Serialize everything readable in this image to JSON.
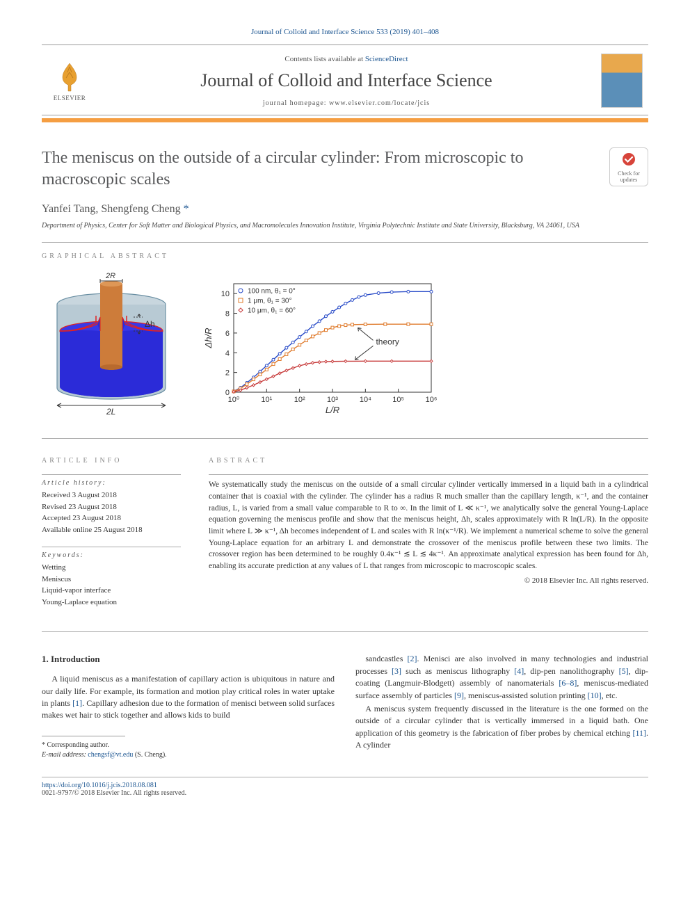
{
  "citation": "Journal of Colloid and Interface Science 533 (2019) 401–408",
  "banner": {
    "contents_prefix": "Contents lists available at ",
    "contents_link": "ScienceDirect",
    "journal_name": "Journal of Colloid and Interface Science",
    "homepage_prefix": "journal homepage: ",
    "homepage_url": "www.elsevier.com/locate/jcis",
    "publisher": "ELSEVIER"
  },
  "updates_badge": {
    "line1": "Check for",
    "line2": "updates",
    "circle_color": "#d7443a",
    "check_color": "#ffffff"
  },
  "title": "The meniscus on the outside of a circular cylinder: From microscopic to macroscopic scales",
  "authors": "Yanfei Tang, Shengfeng Cheng",
  "corr_symbol": "*",
  "affiliation": "Department of Physics, Center for Soft Matter and Biological Physics, and Macromolecules Innovation Institute, Virginia Polytechnic Institute and State University, Blacksburg, VA 24061, USA",
  "section_labels": {
    "graphical": "GRAPHICAL ABSTRACT",
    "info": "ARTICLE INFO",
    "abstract": "ABSTRACT"
  },
  "graphical_abstract": {
    "cylinder": {
      "container_color": "#9fb9c7",
      "container_border": "#6a8fa3",
      "fluid_color": "#2b2bd8",
      "rod_color": "#cd7c3a",
      "rod_top": "#de9756",
      "meniscus_line": "#e02222",
      "label_2R": "2R",
      "label_dh": "Δh",
      "label_2L": "2L",
      "annotation_color": "#333333"
    },
    "chart": {
      "type": "line-scatter",
      "background_color": "#ffffff",
      "axis_color": "#333333",
      "grid_color": "#e8e8e8",
      "xlabel": "L/R",
      "ylabel": "Δh/R",
      "label_fontsize": 13,
      "xscale": "log",
      "xlim": [
        1,
        1000000
      ],
      "xticks": [
        1,
        10,
        100,
        1000,
        10000,
        100000,
        1000000
      ],
      "xtick_labels": [
        "10⁰",
        "10¹",
        "10²",
        "10³",
        "10⁴",
        "10⁵",
        "10⁶"
      ],
      "ylim": [
        0,
        11
      ],
      "yticks": [
        0,
        2,
        4,
        6,
        8,
        10
      ],
      "ytick_labels": [
        "0",
        "2",
        "4",
        "6",
        "8",
        "10"
      ],
      "tick_fontsize": 11,
      "legend_fontsize": 10,
      "theory_label": "theory",
      "theory_arrow_color": "#333333",
      "series": [
        {
          "label": "100 nm, θ₁ = 0°",
          "marker": "circle",
          "color": "#2a4cc8",
          "points": [
            [
              1,
              0.1
            ],
            [
              1.6,
              0.45
            ],
            [
              2.5,
              0.95
            ],
            [
              4,
              1.5
            ],
            [
              6.3,
              2.1
            ],
            [
              10,
              2.7
            ],
            [
              16,
              3.3
            ],
            [
              25,
              3.9
            ],
            [
              40,
              4.5
            ],
            [
              63,
              5.05
            ],
            [
              100,
              5.6
            ],
            [
              160,
              6.15
            ],
            [
              250,
              6.7
            ],
            [
              400,
              7.2
            ],
            [
              630,
              7.7
            ],
            [
              1000,
              8.15
            ],
            [
              1600,
              8.6
            ],
            [
              2500,
              9.0
            ],
            [
              4000,
              9.35
            ],
            [
              6300,
              9.65
            ],
            [
              10000,
              9.85
            ],
            [
              25000,
              10.05
            ],
            [
              63000,
              10.15
            ],
            [
              200000,
              10.2
            ],
            [
              1000000,
              10.2
            ]
          ]
        },
        {
          "label": "1 μm, θ₁ = 30°",
          "marker": "square",
          "color": "#e07c2e",
          "points": [
            [
              1,
              0.08
            ],
            [
              1.6,
              0.38
            ],
            [
              2.5,
              0.8
            ],
            [
              4,
              1.3
            ],
            [
              6.3,
              1.8
            ],
            [
              10,
              2.3
            ],
            [
              16,
              2.85
            ],
            [
              25,
              3.35
            ],
            [
              40,
              3.85
            ],
            [
              63,
              4.35
            ],
            [
              100,
              4.8
            ],
            [
              160,
              5.25
            ],
            [
              250,
              5.65
            ],
            [
              400,
              6.0
            ],
            [
              630,
              6.3
            ],
            [
              1000,
              6.55
            ],
            [
              1600,
              6.7
            ],
            [
              2500,
              6.8
            ],
            [
              4000,
              6.85
            ],
            [
              10000,
              6.88
            ],
            [
              40000,
              6.9
            ],
            [
              200000,
              6.9
            ],
            [
              1000000,
              6.9
            ]
          ]
        },
        {
          "label": "10 μm, θ₁ = 60°",
          "marker": "diamond",
          "color": "#c73a3a",
          "points": [
            [
              1,
              0.04
            ],
            [
              1.6,
              0.2
            ],
            [
              2.5,
              0.45
            ],
            [
              4,
              0.72
            ],
            [
              6.3,
              1.02
            ],
            [
              10,
              1.32
            ],
            [
              16,
              1.62
            ],
            [
              25,
              1.92
            ],
            [
              40,
              2.2
            ],
            [
              63,
              2.45
            ],
            [
              100,
              2.68
            ],
            [
              160,
              2.85
            ],
            [
              250,
              2.98
            ],
            [
              400,
              3.05
            ],
            [
              630,
              3.1
            ],
            [
              1000,
              3.12
            ],
            [
              2500,
              3.14
            ],
            [
              10000,
              3.15
            ],
            [
              63000,
              3.15
            ],
            [
              1000000,
              3.15
            ]
          ]
        }
      ],
      "line_width": 1.4,
      "marker_size": 4
    }
  },
  "article_info": {
    "history_heading": "Article history:",
    "history": [
      "Received 3 August 2018",
      "Revised 23 August 2018",
      "Accepted 23 August 2018",
      "Available online 25 August 2018"
    ],
    "keywords_heading": "Keywords:",
    "keywords": [
      "Wetting",
      "Meniscus",
      "Liquid-vapor interface",
      "Young-Laplace equation"
    ]
  },
  "abstract": "We systematically study the meniscus on the outside of a small circular cylinder vertically immersed in a liquid bath in a cylindrical container that is coaxial with the cylinder. The cylinder has a radius R much smaller than the capillary length, κ⁻¹, and the container radius, L, is varied from a small value comparable to R to ∞. In the limit of L ≪ κ⁻¹, we analytically solve the general Young-Laplace equation governing the meniscus profile and show that the meniscus height, Δh, scales approximately with R ln(L/R). In the opposite limit where L ≫ κ⁻¹, Δh becomes independent of L and scales with R ln(κ⁻¹/R). We implement a numerical scheme to solve the general Young-Laplace equation for an arbitrary L and demonstrate the crossover of the meniscus profile between these two limits. The crossover region has been determined to be roughly 0.4κ⁻¹ ≲ L ≲ 4κ⁻¹. An approximate analytical expression has been found for Δh, enabling its accurate prediction at any values of L that ranges from microscopic to macroscopic scales.",
  "copyright_abstract": "© 2018 Elsevier Inc. All rights reserved.",
  "intro": {
    "heading": "1. Introduction",
    "para1": "A liquid meniscus as a manifestation of capillary action is ubiquitous in nature and our daily life. For example, its formation and motion play critical roles in water uptake in plants [1]. Capillary adhesion due to the formation of menisci between solid surfaces makes wet hair to stick together and allows kids to build",
    "para2_start": "sandcastles [2]. Menisci are also involved in many technologies and industrial processes [3] such as meniscus lithography [4], dip-pen nanolithography [5], dip-coating (Langmuir-Blodgett) assembly of nanomaterials [6–8], meniscus-mediated surface assembly of particles [9], meniscus-assisted solution printing [10], etc.",
    "para3": "A meniscus system frequently discussed in the literature is the one formed on the outside of a circular cylinder that is vertically immersed in a liquid bath. One application of this geometry is the fabrication of fiber probes by chemical etching [11]. A cylinder"
  },
  "footnote": {
    "corr_label": "* Corresponding author.",
    "email_label": "E-mail address:",
    "email": "chengsf@vt.edu",
    "email_name": "(S. Cheng)."
  },
  "footer": {
    "doi": "https://doi.org/10.1016/j.jcis.2018.08.081",
    "issn_line": "0021-9797/© 2018 Elsevier Inc. All rights reserved."
  },
  "ref_links": [
    "[1]",
    "[2]",
    "[3]",
    "[4]",
    "[5]",
    "[6–8]",
    "[9]",
    "[10]",
    "[11]"
  ]
}
